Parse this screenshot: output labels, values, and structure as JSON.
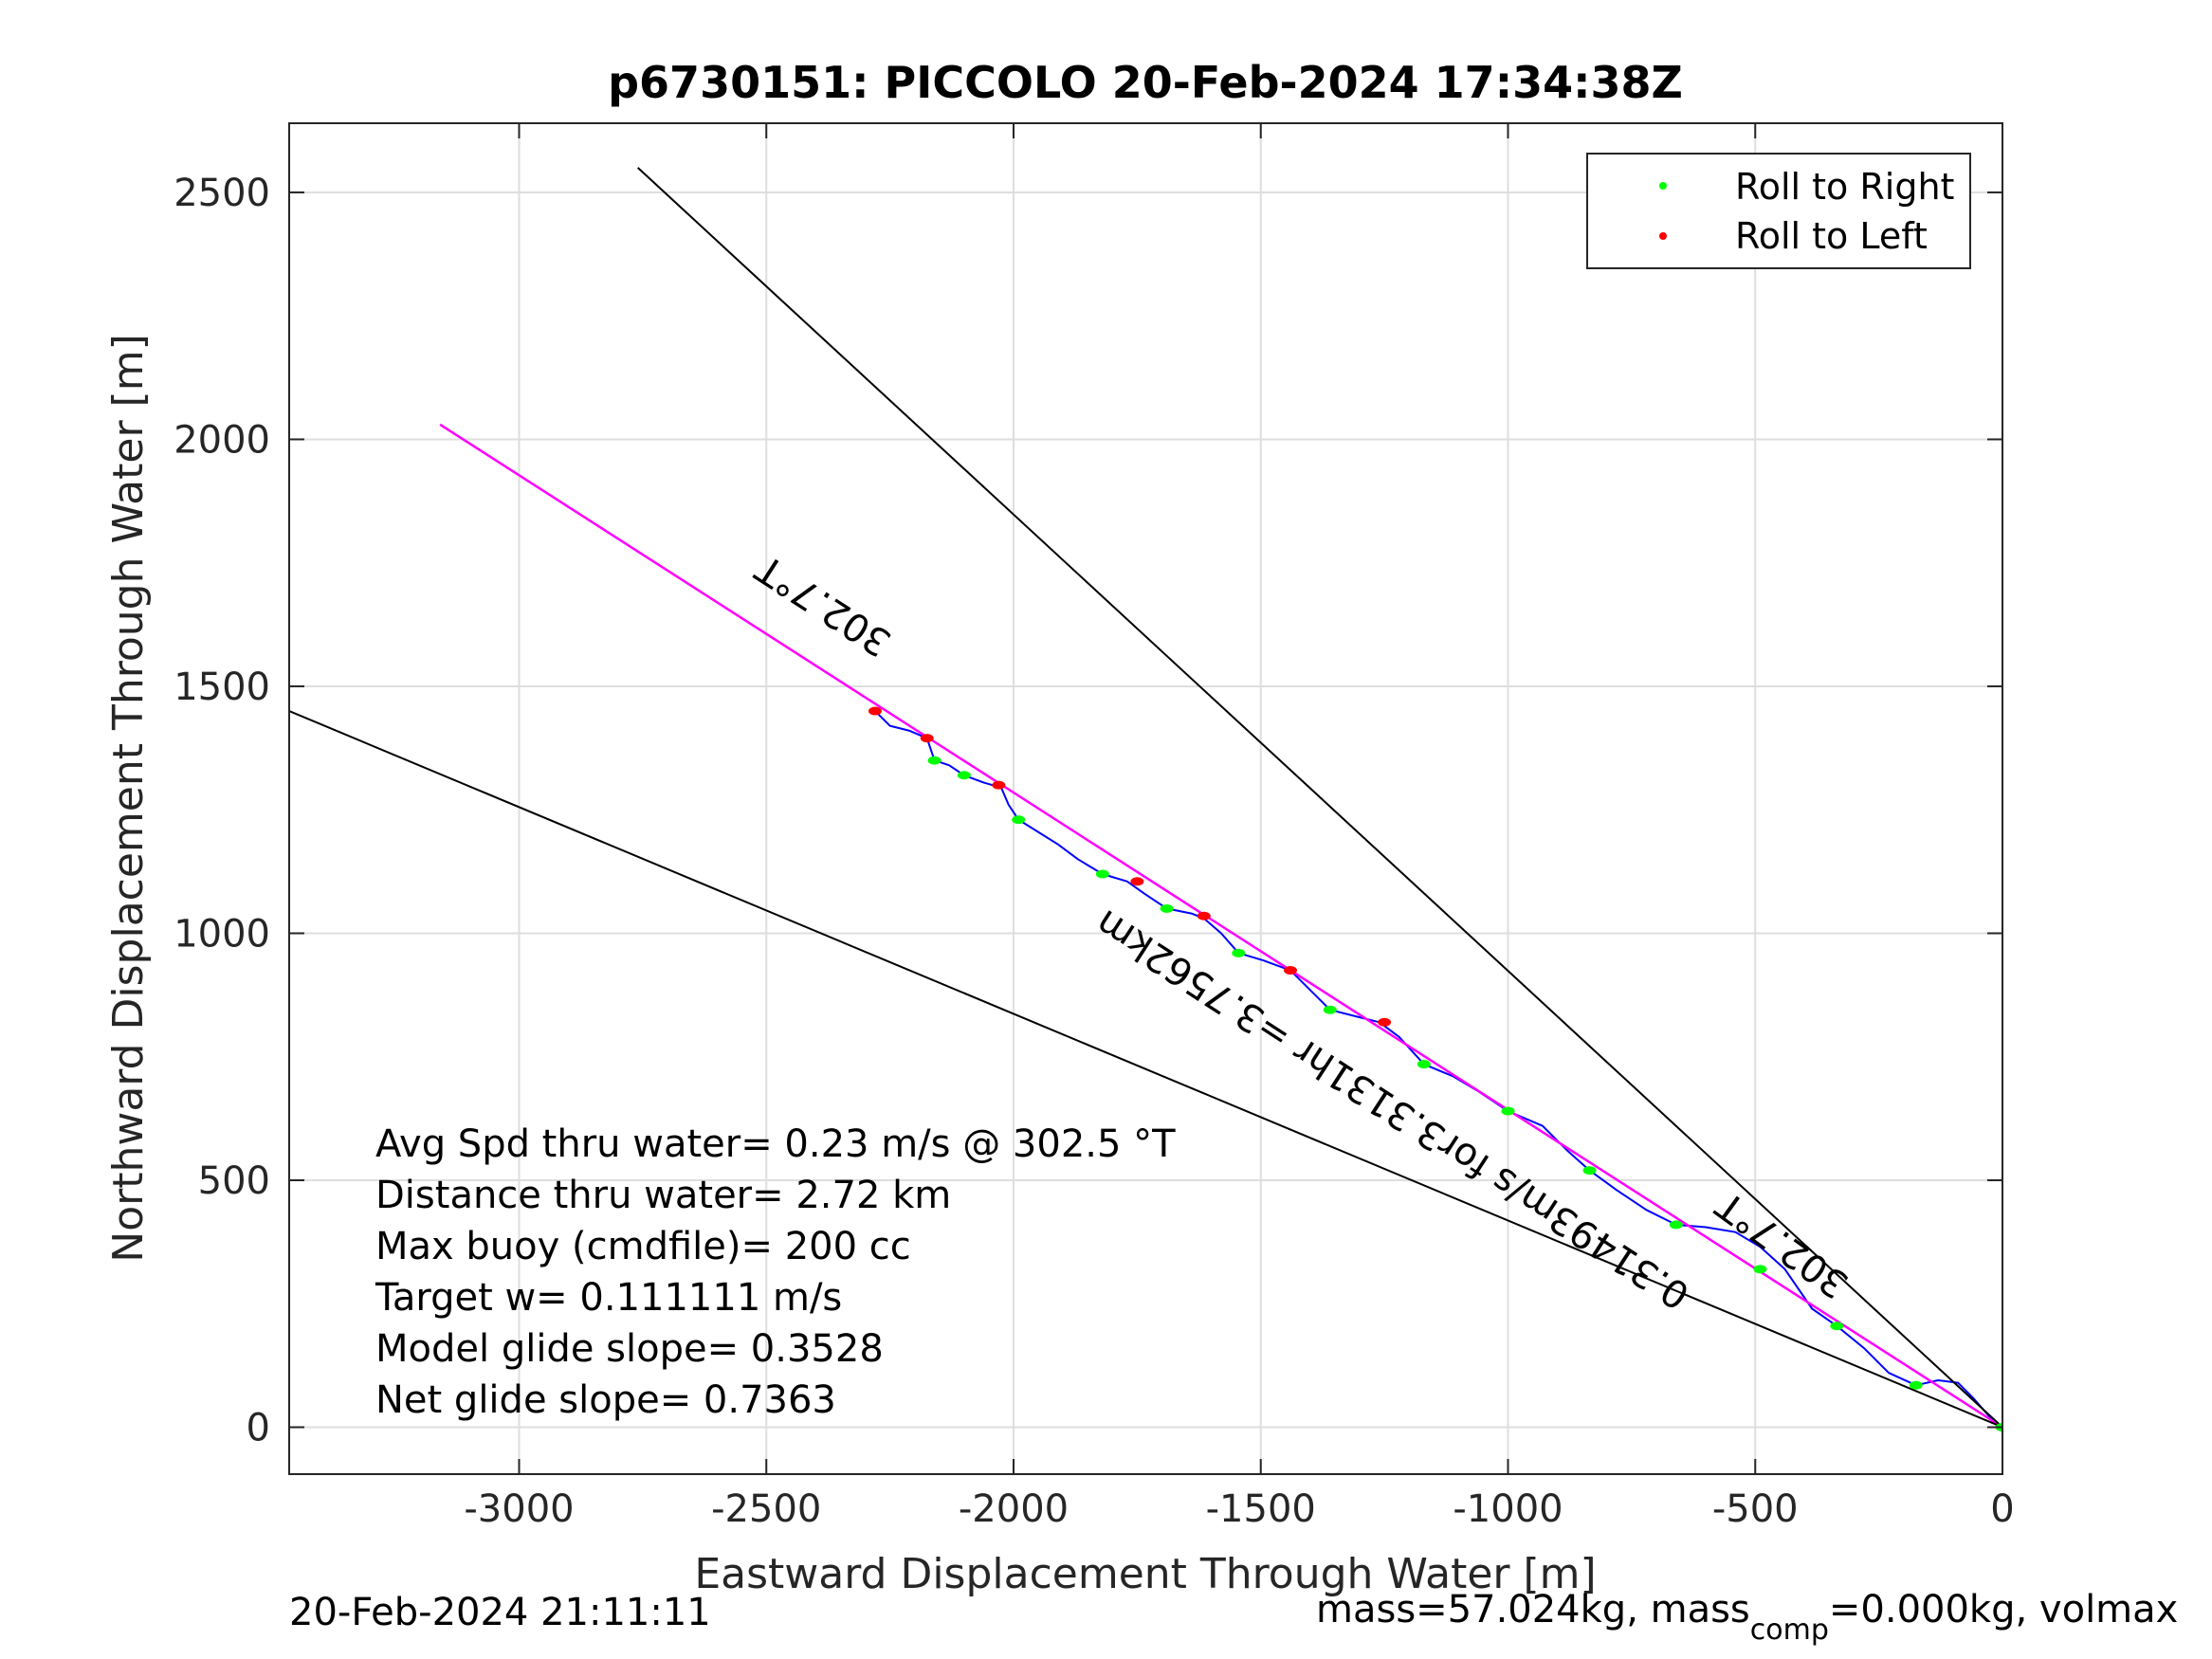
{
  "chart_data": {
    "type": "scatter",
    "title": "p6730151: PICCOLO 20-Feb-2024 17:34:38Z",
    "xlabel": "Eastward Displacement Through Water [m]",
    "ylabel": "Northward Displacement Through Water [m]",
    "xlim": [
      -3465,
      0
    ],
    "ylim": [
      -95,
      2640
    ],
    "xticks": [
      -3000,
      -2500,
      -2000,
      -1500,
      -1000,
      -500,
      0
    ],
    "yticks": [
      0,
      500,
      1000,
      1500,
      2000,
      2500
    ],
    "xtick_labels": [
      "-3000",
      "-2500",
      "-2000",
      "-1500",
      "-1000",
      "-500",
      "0"
    ],
    "ytick_labels": [
      "0",
      "500",
      "1000",
      "1500",
      "2000",
      "2500"
    ],
    "grid": true,
    "legend_position": "top-right",
    "legend": [
      {
        "label": "Roll to Right",
        "color": "#00ff00"
      },
      {
        "label": "Roll to Left",
        "color": "#ff0000"
      }
    ],
    "series": [
      {
        "style": "glider-track",
        "color": "#0000ff",
        "x": [
          0,
          -25,
          -60,
          -90,
          -130,
          -175,
          -230,
          -280,
          -335,
          -385,
          -440,
          -490,
          -540,
          -600,
          -660,
          -720,
          -780,
          -835,
          -880,
          -930,
          -1000,
          -1060,
          -1110,
          -1170,
          -1220,
          -1260,
          -1300,
          -1360,
          -1405,
          -1440,
          -1495,
          -1545,
          -1580,
          -1615,
          -1640,
          -1690,
          -1735,
          -1770,
          -1820,
          -1870,
          -1910,
          -1990,
          -2010,
          -2025,
          -2060,
          -2100,
          -2130,
          -2160,
          -2175,
          -2210,
          -2250,
          -2280
        ],
        "y": [
          0,
          20,
          60,
          90,
          95,
          85,
          110,
          160,
          205,
          240,
          320,
          365,
          395,
          405,
          410,
          440,
          480,
          520,
          560,
          610,
          640,
          680,
          710,
          735,
          790,
          820,
          830,
          845,
          890,
          925,
          945,
          960,
          1000,
          1030,
          1040,
          1050,
          1080,
          1105,
          1120,
          1150,
          1180,
          1230,
          1260,
          1295,
          1305,
          1320,
          1340,
          1350,
          1395,
          1410,
          1420,
          1450
        ]
      },
      {
        "style": "heading-line",
        "color": "#ff00ff",
        "x": [
          0,
          -3160
        ],
        "y": [
          0,
          2030
        ]
      },
      {
        "style": "cone-edge",
        "color": "#000000",
        "x": [
          0,
          -2760
        ],
        "y": [
          0,
          2550
        ]
      },
      {
        "style": "cone-edge",
        "color": "#000000",
        "x": [
          0,
          -3465
        ],
        "y": [
          0,
          1450
        ]
      }
    ],
    "roll_right_points": {
      "x": [
        -1,
        -175,
        -335,
        -490,
        -660,
        -835,
        -1000,
        -1170,
        -1360,
        -1545,
        -1690,
        -1820,
        -1990,
        -2100,
        -2160
      ],
      "y": [
        0,
        85,
        205,
        320,
        410,
        520,
        640,
        735,
        845,
        960,
        1050,
        1120,
        1230,
        1320,
        1350
      ]
    },
    "roll_left_points": {
      "x": [
        -1250,
        -1440,
        -1615,
        -1750,
        -2030,
        -2175,
        -2280
      ],
      "y": [
        820,
        925,
        1035,
        1105,
        1300,
        1395,
        1450
      ]
    },
    "annotations": [
      {
        "text": "302.7°T",
        "x": -2370,
        "y": 1685
      },
      {
        "text": "0.31493m/s for3.3131hr =3.7562km",
        "x": -1220,
        "y": 665
      },
      {
        "text": "302.7°T",
        "x": -430,
        "y": 390
      }
    ],
    "stats": [
      "Avg Spd thru water=  0.23 m/s @ 302.5 °T",
      "Distance thru water=  2.72 km",
      "Max buoy (cmdfile)= 200 cc",
      "Target w= 0.111111 m/s",
      "Model glide slope= 0.3528",
      "Net glide slope= 0.7363"
    ]
  },
  "footer": {
    "timestamp": "20-Feb-2024 21:11:11",
    "mass_prefix": "mass=57.024kg, mass",
    "mass_sub": "comp",
    "mass_suffix": "=0.000kg, volmax"
  }
}
